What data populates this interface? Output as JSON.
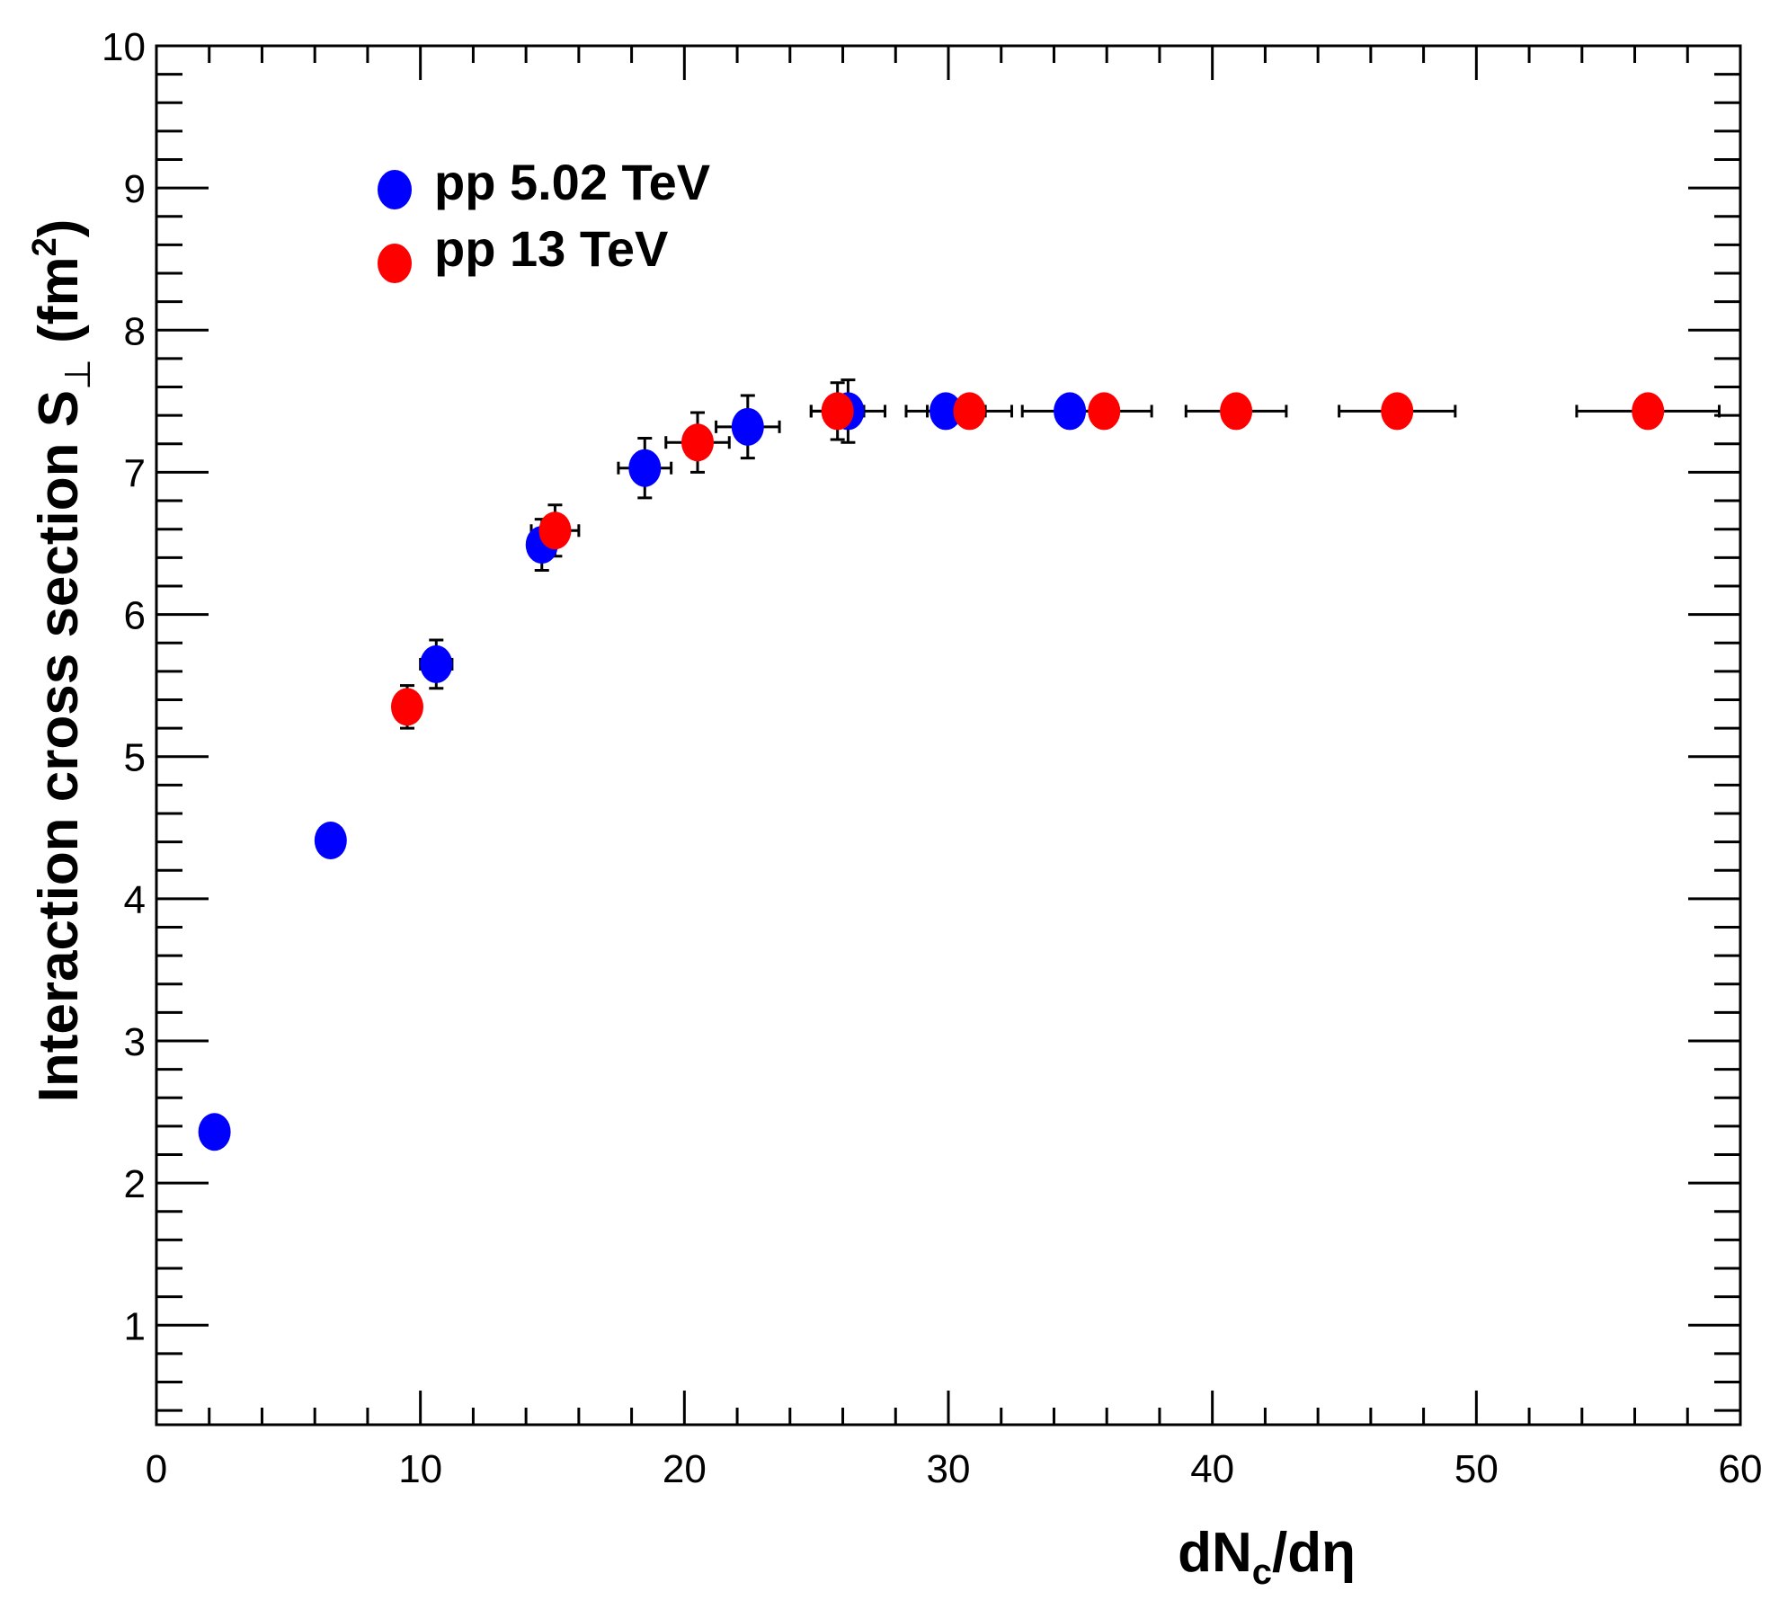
{
  "chart_data": {
    "type": "scatter",
    "title": "",
    "xlabel": "dN_c/dη",
    "xlabel_parts": {
      "main": "dN",
      "sub": "c",
      "rest": "/dη"
    },
    "ylabel": "Interaction cross section S⊥ (fm²)",
    "ylabel_parts": {
      "main": "Interaction cross section S",
      "sub": "⊥",
      "unit_open": " (fm",
      "sup": "2",
      "unit_close": ")"
    },
    "xlim": [
      0,
      60
    ],
    "ylim": [
      0.3,
      10
    ],
    "xticks": [
      0,
      10,
      20,
      30,
      40,
      50,
      60
    ],
    "yticks": [
      1,
      2,
      3,
      4,
      5,
      6,
      7,
      8,
      9,
      10
    ],
    "x_minor_step": 2,
    "y_minor_step": 0.2,
    "legend_position": "top-left",
    "series": [
      {
        "name": "pp 5.02 TeV",
        "color": "#0000ff",
        "points": [
          {
            "x": 2.2,
            "y": 2.36,
            "xerr": 0,
            "yerr": 0
          },
          {
            "x": 6.6,
            "y": 4.41,
            "xerr": 0,
            "yerr": 0
          },
          {
            "x": 10.6,
            "y": 5.65,
            "xerr": 0.6,
            "yerr": 0.17
          },
          {
            "x": 14.6,
            "y": 6.49,
            "xerr": 0.5,
            "yerr": 0.18
          },
          {
            "x": 18.5,
            "y": 7.03,
            "xerr": 1.0,
            "yerr": 0.21
          },
          {
            "x": 22.4,
            "y": 7.32,
            "xerr": 1.2,
            "yerr": 0.22
          },
          {
            "x": 26.2,
            "y": 7.43,
            "xerr": 1.4,
            "yerr": 0.22
          },
          {
            "x": 29.9,
            "y": 7.43,
            "xerr": 1.5,
            "yerr": 0
          },
          {
            "x": 34.6,
            "y": 7.43,
            "xerr": 1.8,
            "yerr": 0
          }
        ]
      },
      {
        "name": "pp 13 TeV",
        "color": "#ff0000",
        "points": [
          {
            "x": 9.5,
            "y": 5.35,
            "xerr": 0,
            "yerr": 0.15
          },
          {
            "x": 15.1,
            "y": 6.59,
            "xerr": 0.9,
            "yerr": 0.18
          },
          {
            "x": 20.5,
            "y": 7.21,
            "xerr": 1.2,
            "yerr": 0.21
          },
          {
            "x": 25.8,
            "y": 7.43,
            "xerr": 1.0,
            "yerr": 0.2
          },
          {
            "x": 30.8,
            "y": 7.43,
            "xerr": 1.6,
            "yerr": 0
          },
          {
            "x": 35.9,
            "y": 7.43,
            "xerr": 1.8,
            "yerr": 0
          },
          {
            "x": 40.9,
            "y": 7.43,
            "xerr": 1.9,
            "yerr": 0
          },
          {
            "x": 47.0,
            "y": 7.43,
            "xerr": 2.2,
            "yerr": 0
          },
          {
            "x": 56.5,
            "y": 7.43,
            "xerr": 2.7,
            "yerr": 0
          }
        ]
      }
    ]
  }
}
